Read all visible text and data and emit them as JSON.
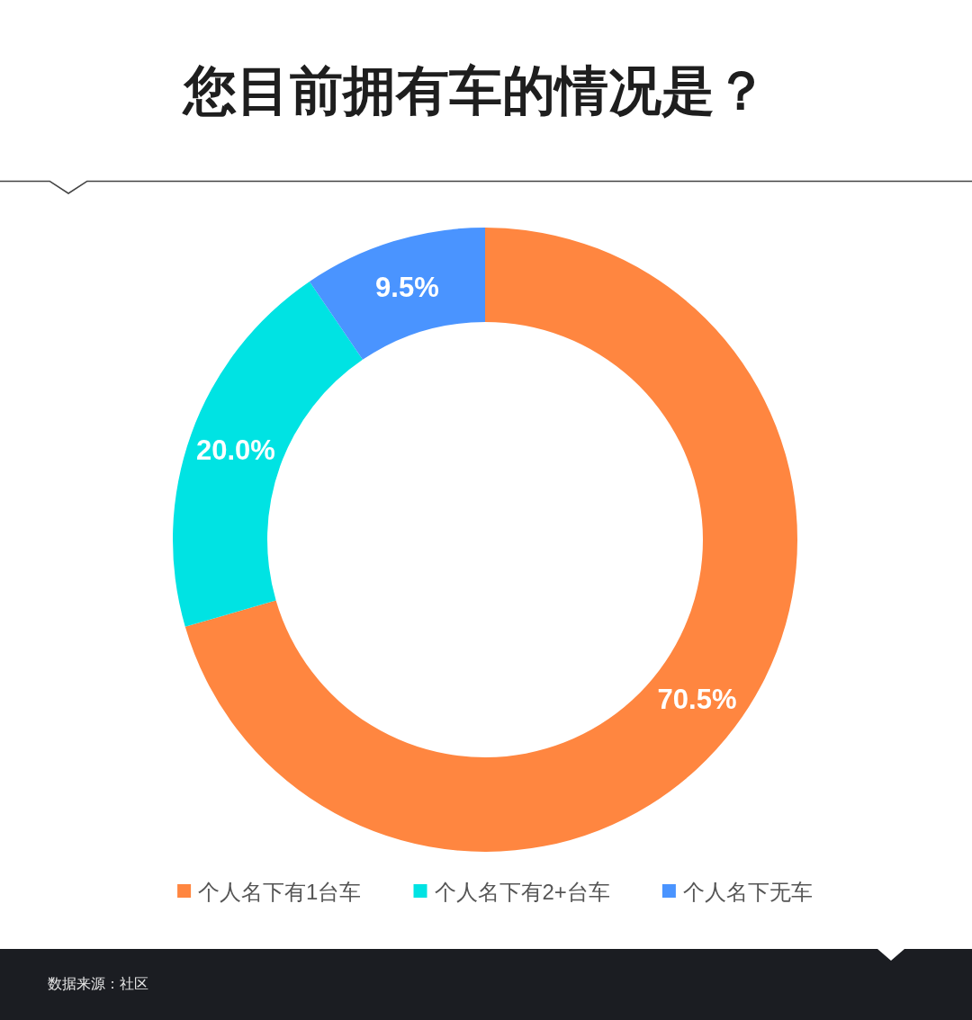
{
  "chart_data": {
    "type": "donut",
    "title": "您目前拥有车的情况是？",
    "categories": [
      "个人名下有1台车",
      "个人名下有2+台车",
      "个人名下无车"
    ],
    "values": [
      70.5,
      20.0,
      9.5
    ],
    "colors": [
      "#ff8640",
      "#00e3e3",
      "#4a94ff"
    ],
    "value_labels": [
      "70.5%",
      "20.0%",
      "9.5%"
    ],
    "legend": "bottom",
    "annotations": [
      "数据来源：社区"
    ]
  }
}
